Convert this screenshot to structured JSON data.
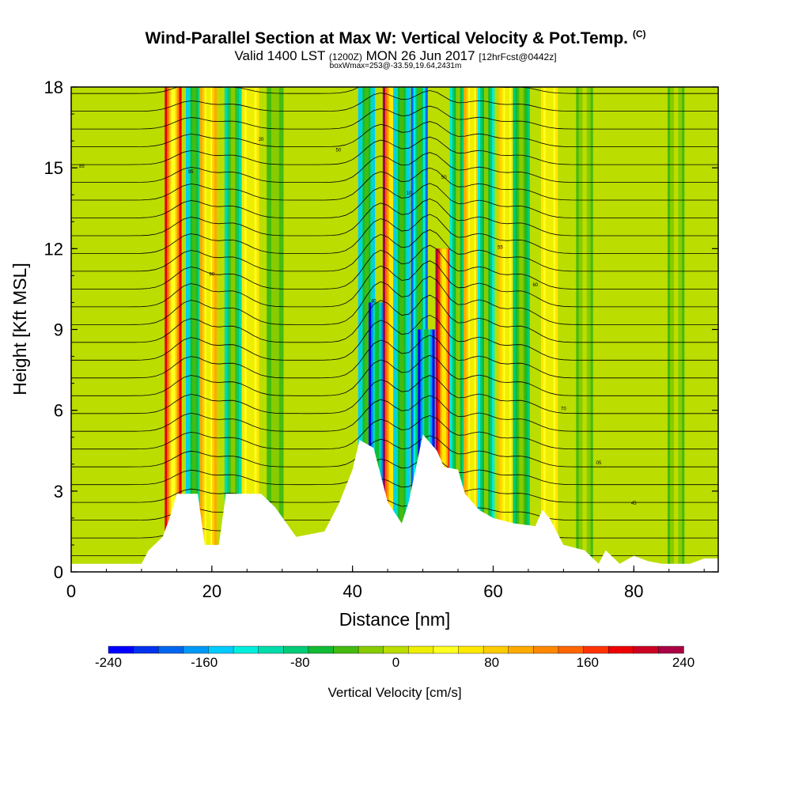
{
  "titles": {
    "main": "Wind-Parallel Section at Max W: Vertical Velocity & Pot.Temp.",
    "copyright": "(C)",
    "valid_prefix": "Valid 1400 LST",
    "valid_utc": "(1200Z)",
    "valid_date": "MON 26 Jun 2017",
    "forecast": "[12hrFcst@0442z]",
    "box": "boxWmax=253@-33.59,19.64,2431m"
  },
  "chart_data": {
    "type": "heatmap",
    "xlabel": "Distance [nm]",
    "ylabel": "Height [Kft MSL]",
    "xlim": [
      0,
      92
    ],
    "ylim": [
      0,
      18
    ],
    "x_ticks": [
      0,
      20,
      40,
      60,
      80
    ],
    "y_ticks": [
      0,
      3,
      6,
      9,
      12,
      15,
      18
    ],
    "colorbar": {
      "label": "Vertical Velocity [cm/s]",
      "ticks": [
        -240,
        -160,
        -80,
        0,
        80,
        160,
        240
      ],
      "colors": [
        "#0000ff",
        "#0033ee",
        "#0066f0",
        "#0099f8",
        "#00ccff",
        "#00eedd",
        "#00ddaa",
        "#00cc77",
        "#11bb33",
        "#44bb11",
        "#88cc00",
        "#bbdd00",
        "#eeee00",
        "#ffff22",
        "#ffe800",
        "#ffcc00",
        "#ffaa00",
        "#ff8800",
        "#ff6600",
        "#ff3300",
        "#ee0000",
        "#cc0022",
        "#aa0044"
      ]
    },
    "updraft_bands": [
      {
        "x": 14.5,
        "w": 180,
        "ymax": 18
      },
      {
        "x": 17.5,
        "w": -150,
        "ymax": 18
      },
      {
        "x": 19.5,
        "w": 110,
        "ymax": 18
      },
      {
        "x": 23,
        "w": -110,
        "ymax": 18
      },
      {
        "x": 25.5,
        "w": 60,
        "ymax": 18
      },
      {
        "x": 29,
        "w": -50,
        "ymax": 18
      },
      {
        "x": 42,
        "w": -150,
        "ymax": 18
      },
      {
        "x": 43.5,
        "w": -230,
        "ymax": 10
      },
      {
        "x": 45.5,
        "w": 220,
        "ymax": 18
      },
      {
        "x": 47,
        "w": -150,
        "ymax": 18
      },
      {
        "x": 49.5,
        "w": -190,
        "ymax": 18
      },
      {
        "x": 50.5,
        "w": -240,
        "ymax": 9
      },
      {
        "x": 53,
        "w": 250,
        "ymax": 12
      },
      {
        "x": 55,
        "w": -120,
        "ymax": 18
      },
      {
        "x": 57,
        "w": 110,
        "ymax": 18
      },
      {
        "x": 59,
        "w": -120,
        "ymax": 18
      },
      {
        "x": 62,
        "w": 90,
        "ymax": 18
      },
      {
        "x": 64,
        "w": -90,
        "ymax": 18
      },
      {
        "x": 68,
        "w": 60,
        "ymax": 18
      },
      {
        "x": 73,
        "w": -40,
        "ymax": 18
      },
      {
        "x": 86,
        "w": -40,
        "ymax": 18
      }
    ],
    "terrain": [
      [
        0,
        0.3
      ],
      [
        10,
        0.3
      ],
      [
        11,
        0.8
      ],
      [
        13,
        1.3
      ],
      [
        14,
        2.0
      ],
      [
        15,
        2.9
      ],
      [
        18,
        2.9
      ],
      [
        19,
        1.0
      ],
      [
        21,
        1.0
      ],
      [
        22,
        2.9
      ],
      [
        27,
        2.9
      ],
      [
        29,
        2.4
      ],
      [
        32,
        1.3
      ],
      [
        36,
        1.5
      ],
      [
        38,
        2.5
      ],
      [
        40,
        3.8
      ],
      [
        41,
        4.9
      ],
      [
        43,
        4.6
      ],
      [
        45,
        2.6
      ],
      [
        47,
        1.8
      ],
      [
        48,
        2.6
      ],
      [
        50,
        5.1
      ],
      [
        52,
        4.5
      ],
      [
        53,
        3.9
      ],
      [
        55,
        3.8
      ],
      [
        56,
        2.9
      ],
      [
        58,
        2.3
      ],
      [
        60,
        2.0
      ],
      [
        63,
        1.8
      ],
      [
        66,
        1.7
      ],
      [
        67,
        2.3
      ],
      [
        68,
        2.0
      ],
      [
        70,
        1.0
      ],
      [
        73,
        0.8
      ],
      [
        75,
        0.3
      ],
      [
        76,
        0.8
      ],
      [
        78,
        0.3
      ],
      [
        80,
        0.6
      ],
      [
        82,
        0.4
      ],
      [
        84,
        0.3
      ],
      [
        86,
        0.3
      ],
      [
        88,
        0.3
      ],
      [
        90,
        0.5
      ],
      [
        92,
        0.5
      ]
    ],
    "theta_labels": [
      "85",
      "90",
      "95",
      "20",
      "50",
      "40",
      "10",
      "50",
      "55",
      "60",
      "70",
      "05",
      "45"
    ]
  }
}
